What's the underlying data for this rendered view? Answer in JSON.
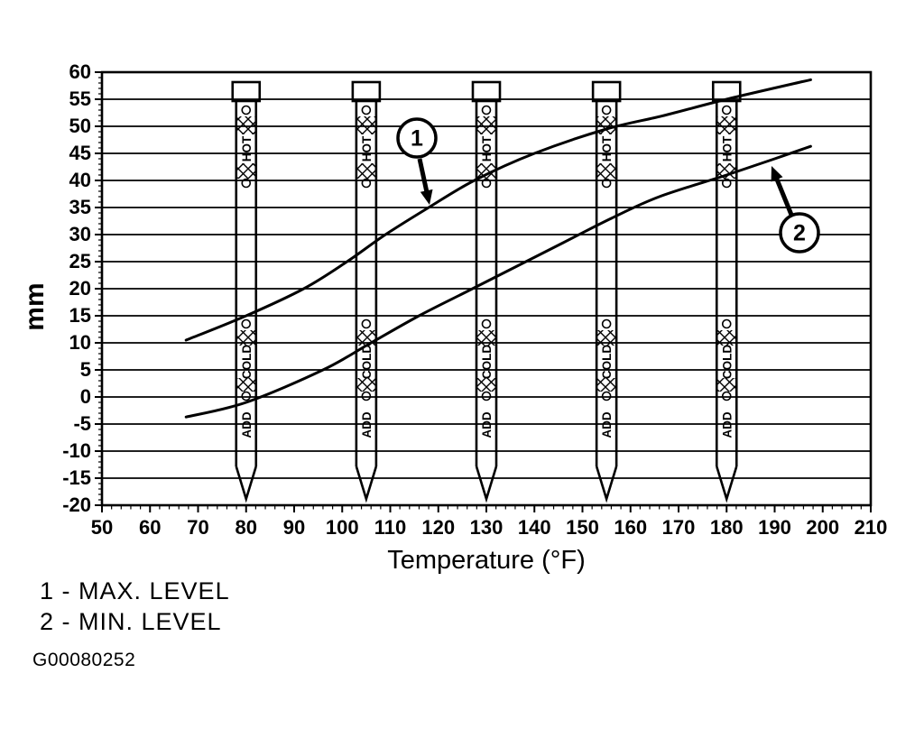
{
  "page": {
    "paper_color": "#ffffff",
    "ink_color": "#000000"
  },
  "chart_data": {
    "type": "line",
    "title": "",
    "xlabel": "Temperature (°F)",
    "ylabel": "mm",
    "xlim": [
      50,
      210
    ],
    "ylim": [
      -20,
      60
    ],
    "x_ticks": [
      50,
      60,
      70,
      80,
      90,
      100,
      110,
      120,
      130,
      140,
      150,
      160,
      170,
      180,
      190,
      200,
      210
    ],
    "y_ticks": [
      60,
      55,
      50,
      45,
      40,
      35,
      30,
      25,
      20,
      15,
      10,
      5,
      0,
      -5,
      -10,
      -15,
      -20
    ],
    "x_minor_step": 2,
    "y_minor_step": 1,
    "grid": "horizontal-only",
    "legend_position": "below-left",
    "series": [
      {
        "name": "MAX. LEVEL",
        "callout": "1",
        "points_f_mm": [
          [
            67.5,
            10.5
          ],
          [
            80,
            15
          ],
          [
            92,
            20
          ],
          [
            101,
            25
          ],
          [
            109,
            30
          ],
          [
            118,
            35
          ],
          [
            127.5,
            40
          ],
          [
            140,
            45
          ],
          [
            155,
            49.5
          ],
          [
            167,
            52
          ],
          [
            180,
            55
          ],
          [
            197.5,
            58.6
          ]
        ]
      },
      {
        "name": "MIN. LEVEL",
        "callout": "2",
        "points_f_mm": [
          [
            67.5,
            -3.7
          ],
          [
            80,
            -1
          ],
          [
            96,
            5
          ],
          [
            106,
            10
          ],
          [
            116,
            15
          ],
          [
            126,
            19.5
          ],
          [
            136,
            24
          ],
          [
            146,
            28.5
          ],
          [
            156,
            33
          ],
          [
            166,
            37
          ],
          [
            180,
            41
          ],
          [
            190,
            44
          ],
          [
            197.5,
            46.3
          ]
        ]
      }
    ],
    "dipsticks": {
      "positions_f": [
        80,
        105,
        130,
        155,
        180
      ],
      "hot_label": "HOT",
      "cold_label": "COLD",
      "add_label": "ADD"
    },
    "callouts": [
      {
        "label": "1",
        "refers_to": "MAX. LEVEL"
      },
      {
        "label": "2",
        "refers_to": "MIN. LEVEL"
      }
    ]
  },
  "legend": {
    "lines": [
      "1 - MAX. LEVEL",
      "2 - MIN. LEVEL"
    ]
  },
  "figure_code": "G00080252"
}
